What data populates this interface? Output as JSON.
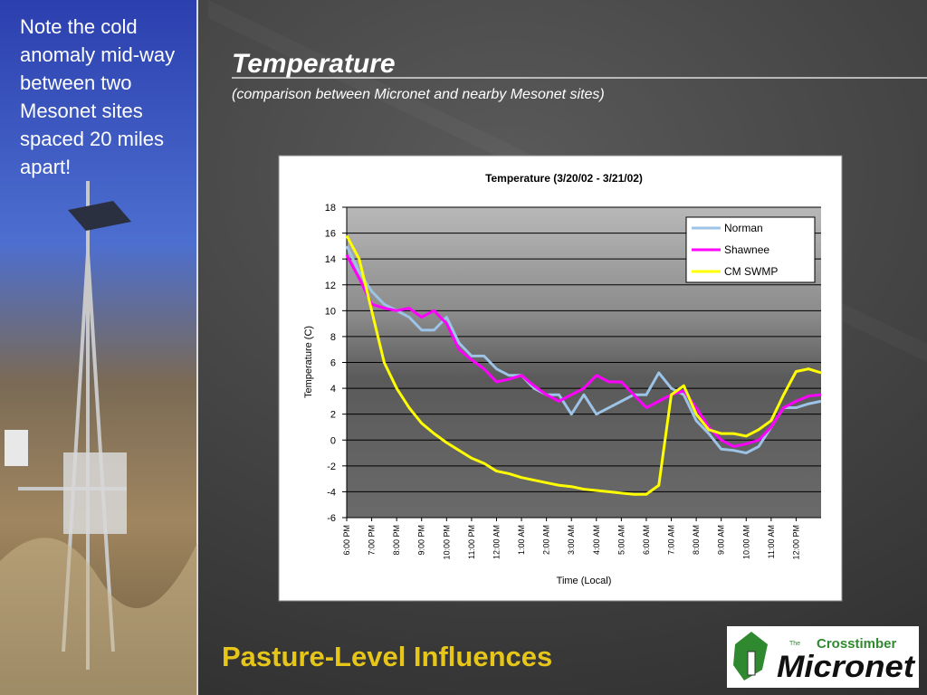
{
  "side_note": "Note the cold anomaly mid-way between two Mesonet sites spaced 20 miles apart!",
  "header": {
    "title": "Temperature",
    "subtitle": "(comparison between Micronet and nearby Mesonet sites)"
  },
  "footer": {
    "title": "Pasture-Level Influences"
  },
  "logo": {
    "prefix": "The",
    "name": "Crosstimber",
    "brand": "Micronet"
  },
  "chart_data": {
    "type": "line",
    "title": "Temperature (3/20/02 - 3/21/02)",
    "x_label": "Time (Local)",
    "y_label": "Temperature (C)",
    "categories": [
      "6:00 PM",
      null,
      "7:00 PM",
      null,
      "8:00 PM",
      null,
      "9:00 PM",
      null,
      "10:00 PM",
      null,
      "11:00 PM",
      null,
      "12:00 AM",
      null,
      "1:00 AM",
      null,
      "2:00 AM",
      null,
      "3:00 AM",
      null,
      "4:00 AM",
      null,
      "5:00 AM",
      null,
      "6:00 AM",
      null,
      "7:00 AM",
      null,
      "8:00 AM",
      null,
      "9:00 AM",
      null,
      "10:00 AM",
      null,
      "11:00 AM",
      null,
      "12:00 PM",
      null,
      null
    ],
    "series": [
      {
        "name": "Norman",
        "color": "#9dc3e6",
        "values": [
          15,
          13,
          11.5,
          10.5,
          10,
          9.5,
          8.5,
          8.5,
          9.5,
          7.5,
          6.5,
          6.5,
          5.5,
          5,
          5,
          4,
          3.5,
          3.5,
          2,
          3.5,
          2,
          2.5,
          3,
          3.5,
          3.5,
          5.2,
          4,
          3.5,
          1.5,
          0.5,
          -0.7,
          -0.8,
          -1,
          -0.5,
          1,
          2.5,
          2.5,
          2.8,
          3
        ]
      },
      {
        "name": "Shawnee",
        "color": "#ff00ff",
        "values": [
          14.3,
          12.5,
          10.5,
          10.2,
          10,
          10.2,
          9.5,
          10,
          9,
          7,
          6.2,
          5.5,
          4.5,
          4.7,
          5,
          4.2,
          3.5,
          3,
          3.5,
          4,
          5,
          4.5,
          4.5,
          3.5,
          2.5,
          3,
          3.5,
          3.8,
          2.5,
          1,
          0,
          -0.5,
          -0.3,
          0,
          1,
          2.5,
          3,
          3.4,
          3.5
        ]
      },
      {
        "name": "CM SWMP",
        "color": "#ffff00",
        "values": [
          15.8,
          14,
          10,
          6,
          4,
          2.5,
          1.3,
          0.5,
          -0.2,
          -0.8,
          -1.4,
          -1.8,
          -2.4,
          -2.6,
          -2.9,
          -3.1,
          -3.3,
          -3.5,
          -3.6,
          -3.8,
          -3.9,
          -4,
          -4.1,
          -4.2,
          -4.2,
          -3.5,
          3.5,
          4.2,
          2,
          0.8,
          0.5,
          0.5,
          0.3,
          0.8,
          1.5,
          3.5,
          5.3,
          5.5,
          5.2
        ]
      }
    ],
    "ylim": [
      -6,
      18
    ],
    "yticks": [
      -6,
      -4,
      -2,
      0,
      2,
      4,
      6,
      8,
      10,
      12,
      14,
      16,
      18
    ],
    "grid": true,
    "legend": "upper right"
  }
}
